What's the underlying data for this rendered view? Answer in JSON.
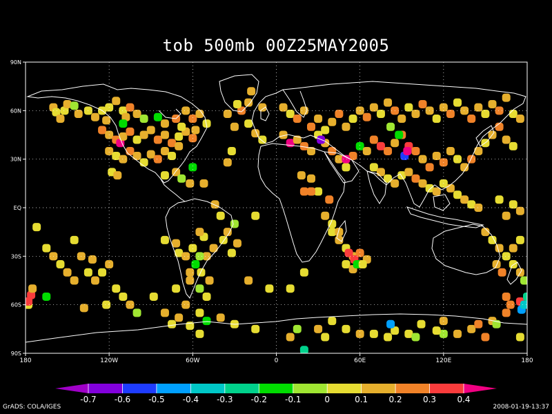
{
  "title": "tob 500mb 00Z25MAY2005",
  "footer_left": "GrADS: COLA/IGES",
  "footer_right": "2008-01-19-13:37",
  "map": {
    "projection": "latlon",
    "lon_range": [
      0,
      360
    ],
    "lat_range": [
      -90,
      90
    ],
    "x_ticks": [
      {
        "value": 0,
        "label": "180"
      },
      {
        "value": 60,
        "label": "120W"
      },
      {
        "value": 120,
        "label": "60W"
      },
      {
        "value": 180,
        "label": "0"
      },
      {
        "value": 240,
        "label": "60E"
      },
      {
        "value": 300,
        "label": "120E"
      },
      {
        "value": 360,
        "label": "180"
      }
    ],
    "y_ticks": [
      {
        "value": 90,
        "label": "90N"
      },
      {
        "value": 60,
        "label": "60N"
      },
      {
        "value": 30,
        "label": "30N"
      },
      {
        "value": 0,
        "label": "EQ"
      },
      {
        "value": -30,
        "label": "30S"
      },
      {
        "value": -60,
        "label": "60S"
      },
      {
        "value": -90,
        "label": "90S"
      }
    ],
    "grid": "dotted"
  },
  "colorbar": {
    "labels": [
      "-0.7",
      "-0.6",
      "-0.5",
      "-0.4",
      "-0.3",
      "-0.2",
      "-0.1",
      "0",
      "0.1",
      "0.2",
      "0.3",
      "0.4"
    ],
    "colors": [
      "#a000c8",
      "#8200dc",
      "#1e3cff",
      "#00a0ff",
      "#00c8c8",
      "#00d28c",
      "#00dc00",
      "#a0e632",
      "#e6dc32",
      "#e6af2d",
      "#f08228",
      "#fa3c3c",
      "#f00082"
    ]
  },
  "chart_data": {
    "type": "scatter",
    "title": "tob 500mb 00Z25MAY2005",
    "xlabel": "",
    "ylabel": "",
    "xlim": [
      0,
      360
    ],
    "ylim": [
      -90,
      90
    ],
    "note_units": "lon east of 180W, lat degrees",
    "points": [
      [
        20,
        62,
        0.1
      ],
      [
        22,
        59,
        0.0
      ],
      [
        25,
        55,
        0.1
      ],
      [
        28,
        60,
        0.0
      ],
      [
        30,
        64,
        0.1
      ],
      [
        35,
        63,
        -0.1
      ],
      [
        38,
        58,
        0.1
      ],
      [
        45,
        60,
        0.0
      ],
      [
        50,
        56,
        0.1
      ],
      [
        55,
        60,
        0.0
      ],
      [
        58,
        54,
        0.1
      ],
      [
        60,
        62,
        0.0
      ],
      [
        65,
        66,
        0.1
      ],
      [
        70,
        60,
        0.0
      ],
      [
        72,
        56,
        0.1
      ],
      [
        75,
        62,
        0.2
      ],
      [
        80,
        58,
        0.1
      ],
      [
        55,
        48,
        0.2
      ],
      [
        60,
        45,
        0.1
      ],
      [
        65,
        42,
        0.2
      ],
      [
        68,
        40,
        0.4
      ],
      [
        70,
        44,
        0.1
      ],
      [
        75,
        47,
        0.2
      ],
      [
        80,
        42,
        0.0
      ],
      [
        85,
        45,
        0.1
      ],
      [
        90,
        48,
        0.1
      ],
      [
        95,
        42,
        0.2
      ],
      [
        100,
        45,
        0.1
      ],
      [
        105,
        40,
        0.2
      ],
      [
        110,
        44,
        0.0
      ],
      [
        115,
        47,
        0.1
      ],
      [
        120,
        43,
        0.2
      ],
      [
        60,
        35,
        0.1
      ],
      [
        65,
        32,
        0.0
      ],
      [
        70,
        30,
        0.1
      ],
      [
        75,
        35,
        0.2
      ],
      [
        80,
        32,
        0.1
      ],
      [
        85,
        28,
        0.0
      ],
      [
        90,
        33,
        0.1
      ],
      [
        95,
        30,
        0.2
      ],
      [
        100,
        35,
        0.1
      ],
      [
        105,
        32,
        0.0
      ],
      [
        110,
        38,
        0.1
      ],
      [
        112,
        50,
        0.0
      ],
      [
        70,
        52,
        -0.2
      ],
      [
        85,
        55,
        -0.1
      ],
      [
        100,
        52,
        0.1
      ],
      [
        108,
        55,
        0.2
      ],
      [
        95,
        56,
        -0.2
      ],
      [
        115,
        60,
        0.1
      ],
      [
        120,
        55,
        0.2
      ],
      [
        125,
        58,
        0.1
      ],
      [
        130,
        52,
        0.0
      ],
      [
        122,
        48,
        0.1
      ],
      [
        62,
        22,
        0.0
      ],
      [
        66,
        20,
        0.1
      ],
      [
        100,
        20,
        0.0
      ],
      [
        108,
        22,
        0.1
      ],
      [
        112,
        18,
        -0.1
      ],
      [
        118,
        15,
        0.1
      ],
      [
        120,
        25,
        -0.2
      ],
      [
        150,
        50,
        0.1
      ],
      [
        160,
        52,
        0.0
      ],
      [
        165,
        46,
        0.1
      ],
      [
        170,
        42,
        0.0
      ],
      [
        128,
        15,
        0.1
      ],
      [
        136,
        2,
        0.1
      ],
      [
        140,
        -5,
        0.0
      ],
      [
        145,
        -15,
        0.1
      ],
      [
        142,
        -20,
        0.0
      ],
      [
        150,
        -10,
        -0.1
      ],
      [
        152,
        -22,
        0.1
      ],
      [
        148,
        -28,
        0.0
      ],
      [
        135,
        -25,
        0.1
      ],
      [
        128,
        -18,
        0.0
      ],
      [
        130,
        -30,
        0.1
      ],
      [
        126,
        -40,
        0.0
      ],
      [
        132,
        -45,
        0.1
      ],
      [
        125,
        -50,
        -0.1
      ],
      [
        130,
        -55,
        0.0
      ],
      [
        118,
        -40,
        0.1
      ],
      [
        165,
        -5,
        0.0
      ],
      [
        145,
        28,
        0.1
      ],
      [
        148,
        35,
        0.0
      ],
      [
        145,
        58,
        0.1
      ],
      [
        155,
        60,
        0.2
      ],
      [
        152,
        64,
        0.0
      ],
      [
        160,
        65,
        0.1
      ],
      [
        162,
        72,
        0.1
      ],
      [
        170,
        62,
        0.1
      ],
      [
        185,
        62,
        0.1
      ],
      [
        190,
        58,
        0.0
      ],
      [
        195,
        55,
        0.2
      ],
      [
        200,
        60,
        0.1
      ],
      [
        205,
        50,
        0.2
      ],
      [
        210,
        55,
        0.1
      ],
      [
        215,
        48,
        0.0
      ],
      [
        220,
        53,
        0.1
      ],
      [
        225,
        58,
        0.2
      ],
      [
        230,
        50,
        0.1
      ],
      [
        235,
        55,
        0.0
      ],
      [
        240,
        60,
        0.1
      ],
      [
        245,
        56,
        0.2
      ],
      [
        250,
        62,
        0.1
      ],
      [
        255,
        58,
        0.0
      ],
      [
        260,
        65,
        0.1
      ],
      [
        265,
        60,
        0.2
      ],
      [
        270,
        55,
        0.1
      ],
      [
        275,
        62,
        0.0
      ],
      [
        280,
        58,
        0.1
      ],
      [
        285,
        64,
        0.2
      ],
      [
        290,
        60,
        0.1
      ],
      [
        295,
        55,
        0.0
      ],
      [
        300,
        62,
        0.1
      ],
      [
        305,
        58,
        0.2
      ],
      [
        310,
        65,
        0.0
      ],
      [
        315,
        60,
        0.1
      ],
      [
        320,
        55,
        0.2
      ],
      [
        325,
        62,
        0.1
      ],
      [
        330,
        58,
        0.0
      ],
      [
        335,
        64,
        0.1
      ],
      [
        340,
        60,
        0.2
      ],
      [
        345,
        68,
        0.1
      ],
      [
        350,
        58,
        0.0
      ],
      [
        355,
        55,
        0.1
      ],
      [
        185,
        45,
        0.1
      ],
      [
        190,
        40,
        0.4
      ],
      [
        195,
        42,
        0.1
      ],
      [
        200,
        38,
        0.2
      ],
      [
        205,
        35,
        0.1
      ],
      [
        210,
        45,
        0.0
      ],
      [
        215,
        40,
        0.1
      ],
      [
        220,
        35,
        0.2
      ],
      [
        225,
        30,
        0.1
      ],
      [
        230,
        25,
        0.0
      ],
      [
        235,
        32,
        0.2
      ],
      [
        240,
        38,
        -0.2
      ],
      [
        245,
        35,
        0.1
      ],
      [
        250,
        42,
        0.2
      ],
      [
        255,
        38,
        0.3
      ],
      [
        260,
        35,
        0.2
      ],
      [
        265,
        40,
        0.1
      ],
      [
        270,
        45,
        0.2
      ],
      [
        275,
        38,
        0.3
      ],
      [
        280,
        35,
        0.2
      ],
      [
        285,
        30,
        0.1
      ],
      [
        290,
        25,
        0.2
      ],
      [
        295,
        32,
        0.1
      ],
      [
        300,
        28,
        0.2
      ],
      [
        305,
        35,
        0.1
      ],
      [
        310,
        30,
        0.0
      ],
      [
        315,
        25,
        0.1
      ],
      [
        320,
        30,
        0.2
      ],
      [
        325,
        35,
        0.1
      ],
      [
        330,
        40,
        0.0
      ],
      [
        335,
        45,
        0.1
      ],
      [
        340,
        50,
        0.2
      ],
      [
        345,
        42,
        0.1
      ],
      [
        350,
        38,
        0.0
      ],
      [
        212,
        42,
        -0.7
      ],
      [
        230,
        30,
        0.4
      ],
      [
        272,
        32,
        -0.6
      ],
      [
        274,
        35,
        0.4
      ],
      [
        268,
        45,
        -0.2
      ],
      [
        262,
        50,
        -0.1
      ],
      [
        250,
        25,
        0.0
      ],
      [
        255,
        22,
        0.1
      ],
      [
        260,
        18,
        0.0
      ],
      [
        265,
        15,
        0.1
      ],
      [
        270,
        20,
        0.0
      ],
      [
        275,
        22,
        0.1
      ],
      [
        280,
        18,
        0.2
      ],
      [
        285,
        15,
        0.1
      ],
      [
        290,
        12,
        0.0
      ],
      [
        295,
        10,
        0.1
      ],
      [
        300,
        15,
        0.0
      ],
      [
        305,
        12,
        0.1
      ],
      [
        310,
        8,
        0.0
      ],
      [
        315,
        5,
        0.1
      ],
      [
        320,
        2,
        0.0
      ],
      [
        325,
        0,
        0.1
      ],
      [
        340,
        5,
        0.0
      ],
      [
        345,
        -5,
        0.1
      ],
      [
        350,
        2,
        0.0
      ],
      [
        355,
        -2,
        0.1
      ],
      [
        330,
        -15,
        0.1
      ],
      [
        335,
        -20,
        0.0
      ],
      [
        340,
        -25,
        0.1
      ],
      [
        345,
        -30,
        0.0
      ],
      [
        350,
        -25,
        0.1
      ],
      [
        355,
        -20,
        0.0
      ],
      [
        338,
        -35,
        0.1
      ],
      [
        342,
        -40,
        0.2
      ],
      [
        350,
        -35,
        0.0
      ],
      [
        355,
        -40,
        0.1
      ],
      [
        358,
        -45,
        -0.1
      ],
      [
        345,
        -55,
        0.2
      ],
      [
        348,
        -60,
        0.2
      ],
      [
        205,
        18,
        0.1
      ],
      [
        210,
        10,
        0.0
      ],
      [
        215,
        -5,
        0.1
      ],
      [
        220,
        -15,
        0.0
      ],
      [
        225,
        -20,
        0.1
      ],
      [
        230,
        -25,
        0.0
      ],
      [
        235,
        -30,
        0.1
      ],
      [
        240,
        -28,
        0.2
      ],
      [
        245,
        -32,
        0.1
      ],
      [
        230,
        -35,
        0.0
      ],
      [
        235,
        -38,
        0.1
      ],
      [
        240,
        -35,
        0.2
      ],
      [
        232,
        -28,
        0.3
      ],
      [
        236,
        -32,
        0.3
      ],
      [
        198,
        20,
        0.1
      ],
      [
        200,
        10,
        0.2
      ],
      [
        218,
        5,
        0.2
      ],
      [
        220,
        -10,
        0.0
      ],
      [
        225,
        -15,
        0.1
      ],
      [
        238,
        -35,
        -0.2
      ],
      [
        242,
        -35,
        0.0
      ],
      [
        205,
        10,
        0.2
      ],
      [
        200,
        -40,
        0.0
      ],
      [
        190,
        -50,
        0.0
      ],
      [
        345,
        -65,
        0.2
      ],
      [
        335,
        -70,
        0.1
      ],
      [
        355,
        -58,
        0.3
      ],
      [
        356,
        -63,
        -0.5
      ],
      [
        358,
        -60,
        -0.4
      ],
      [
        360,
        -55,
        -0.3
      ],
      [
        100,
        -20,
        0.0
      ],
      [
        108,
        -22,
        0.1
      ],
      [
        110,
        -28,
        0.0
      ],
      [
        115,
        -30,
        0.1
      ],
      [
        120,
        -25,
        0.0
      ],
      [
        125,
        -15,
        0.1
      ],
      [
        125,
        -30,
        -0.1
      ],
      [
        122,
        -35,
        -0.2
      ],
      [
        118,
        -45,
        0.1
      ],
      [
        108,
        -50,
        0.0
      ],
      [
        115,
        -60,
        0.1
      ],
      [
        2,
        -60,
        0.0
      ],
      [
        4,
        -54,
        0.3
      ],
      [
        2,
        -58,
        0.3
      ],
      [
        5,
        -50,
        0.1
      ],
      [
        8,
        -12,
        0.0
      ],
      [
        15,
        -25,
        0.0
      ],
      [
        20,
        -30,
        0.1
      ],
      [
        25,
        -35,
        0.0
      ],
      [
        30,
        -40,
        0.1
      ],
      [
        35,
        -20,
        0.0
      ],
      [
        40,
        -30,
        0.1
      ],
      [
        45,
        -40,
        0.0
      ],
      [
        48,
        -32,
        0.1
      ],
      [
        50,
        -45,
        0.1
      ],
      [
        55,
        -40,
        0.0
      ],
      [
        60,
        -35,
        0.1
      ],
      [
        65,
        -50,
        0.0
      ],
      [
        70,
        -55,
        0.0
      ],
      [
        75,
        -60,
        0.1
      ],
      [
        80,
        -65,
        -0.1
      ],
      [
        92,
        -55,
        0.0
      ],
      [
        100,
        -65,
        0.1
      ],
      [
        105,
        -72,
        0.0
      ],
      [
        110,
        -68,
        0.1
      ],
      [
        118,
        -73,
        0.0
      ],
      [
        125,
        -78,
        0.0
      ],
      [
        160,
        -45,
        0.1
      ],
      [
        175,
        -50,
        0.0
      ],
      [
        195,
        -75,
        -0.1
      ],
      [
        215,
        -80,
        0.0
      ],
      [
        240,
        -78,
        0.1
      ],
      [
        260,
        -80,
        0.0
      ],
      [
        275,
        -78,
        0.0
      ],
      [
        300,
        -78,
        -0.1
      ],
      [
        320,
        -75,
        0.1
      ],
      [
        330,
        -80,
        0.2
      ],
      [
        190,
        -80,
        0.1
      ],
      [
        210,
        -75,
        0.1
      ],
      [
        220,
        -70,
        0.0
      ],
      [
        230,
        -75,
        0.0
      ],
      [
        250,
        -78,
        0.0
      ],
      [
        265,
        -76,
        0.0
      ],
      [
        280,
        -80,
        -0.1
      ],
      [
        295,
        -76,
        0.0
      ],
      [
        310,
        -78,
        0.1
      ],
      [
        165,
        -75,
        0.0
      ],
      [
        150,
        -72,
        0.0
      ],
      [
        140,
        -68,
        0.1
      ],
      [
        130,
        -70,
        -0.2
      ],
      [
        125,
        -65,
        0.0
      ],
      [
        200,
        -88,
        -0.3
      ],
      [
        262,
        -72,
        -0.5
      ],
      [
        284,
        -72,
        0.0
      ],
      [
        300,
        -70,
        0.1
      ],
      [
        325,
        -72,
        0.2
      ],
      [
        338,
        -72,
        -0.1
      ],
      [
        355,
        -80,
        0.0
      ],
      [
        35,
        -45,
        0.1
      ],
      [
        15,
        -55,
        -0.2
      ],
      [
        42,
        -62,
        0.1
      ],
      [
        58,
        -60,
        0.0
      ]
    ]
  }
}
